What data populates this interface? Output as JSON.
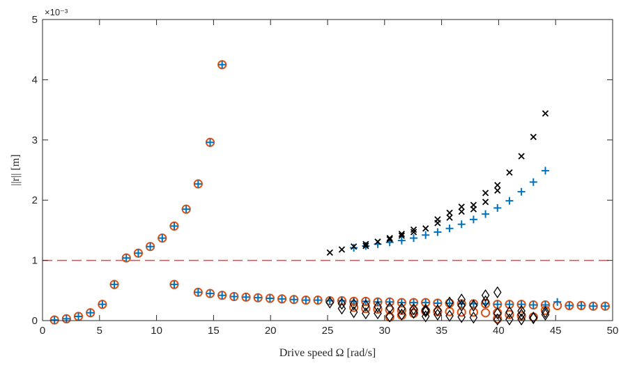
{
  "chart_data": {
    "type": "scatter",
    "xlabel": "Drive speed Ω [rad/s]",
    "ylabel": "||r|| [m]",
    "y_exponent_label": "×10⁻³",
    "xlim": [
      0,
      50
    ],
    "ylim": [
      0,
      5
    ],
    "x_ticks": [
      0,
      5,
      10,
      15,
      20,
      25,
      30,
      35,
      40,
      45,
      50
    ],
    "y_ticks": [
      0,
      1,
      2,
      3,
      4,
      5
    ],
    "grid": false,
    "legend": "none",
    "threshold": {
      "y": 1,
      "style": "dashed",
      "color": "#ff3b3b"
    },
    "series": [
      {
        "marker": "circle",
        "color": "#d95319",
        "points": [
          [
            1.05,
            0.01
          ],
          [
            2.1,
            0.03
          ],
          [
            3.15,
            0.07
          ],
          [
            4.2,
            0.13
          ],
          [
            5.25,
            0.27
          ],
          [
            6.3,
            0.6
          ],
          [
            7.35,
            1.04
          ],
          [
            8.4,
            1.12
          ],
          [
            9.45,
            1.23
          ],
          [
            10.5,
            1.37
          ],
          [
            11.55,
            1.57
          ],
          [
            12.6,
            1.85
          ],
          [
            13.65,
            2.27
          ],
          [
            14.7,
            2.96
          ],
          [
            15.75,
            4.25
          ],
          [
            11.55,
            0.6
          ],
          [
            13.65,
            0.47
          ],
          [
            14.7,
            0.45
          ],
          [
            15.75,
            0.42
          ],
          [
            16.8,
            0.4
          ],
          [
            17.85,
            0.39
          ],
          [
            18.9,
            0.38
          ],
          [
            19.95,
            0.37
          ],
          [
            21,
            0.36
          ],
          [
            22.05,
            0.35
          ],
          [
            23.1,
            0.34
          ],
          [
            24.15,
            0.34
          ],
          [
            25.2,
            0.33
          ],
          [
            26.25,
            0.33
          ],
          [
            27.3,
            0.32
          ],
          [
            28.35,
            0.32
          ],
          [
            29.4,
            0.31
          ],
          [
            30.45,
            0.31
          ],
          [
            31.5,
            0.3
          ],
          [
            32.55,
            0.3
          ],
          [
            33.6,
            0.3
          ],
          [
            34.65,
            0.29
          ],
          [
            35.7,
            0.29
          ],
          [
            36.75,
            0.28
          ],
          [
            37.8,
            0.28
          ],
          [
            38.85,
            0.28
          ],
          [
            39.9,
            0.27
          ],
          [
            40.95,
            0.27
          ],
          [
            42,
            0.27
          ],
          [
            43.05,
            0.26
          ],
          [
            44.1,
            0.26
          ],
          [
            45.15,
            0.25
          ],
          [
            46.2,
            0.25
          ],
          [
            47.25,
            0.25
          ],
          [
            48.3,
            0.24
          ],
          [
            49.35,
            0.24
          ],
          [
            27.3,
            0.22
          ],
          [
            28.35,
            0.2
          ],
          [
            29.4,
            0.19
          ],
          [
            30.45,
            0.18
          ],
          [
            31.5,
            0.17
          ],
          [
            32.55,
            0.17
          ],
          [
            33.6,
            0.16
          ],
          [
            34.65,
            0.15
          ],
          [
            35.7,
            0.15
          ],
          [
            36.75,
            0.14
          ],
          [
            37.8,
            0.14
          ],
          [
            38.85,
            0.13
          ],
          [
            39.9,
            0.13
          ],
          [
            40.95,
            0.1
          ],
          [
            42,
            0.08
          ],
          [
            43.05,
            0.06
          ],
          [
            44.1,
            0.17
          ],
          [
            30.45,
            0.06
          ],
          [
            31.5,
            0.09
          ],
          [
            32.55,
            0.12
          ],
          [
            39.9,
            0.03
          ]
        ]
      },
      {
        "marker": "plus",
        "color": "#0072bd",
        "points": [
          [
            1.05,
            0.01
          ],
          [
            2.1,
            0.03
          ],
          [
            3.15,
            0.07
          ],
          [
            4.2,
            0.13
          ],
          [
            5.25,
            0.27
          ],
          [
            6.3,
            0.6
          ],
          [
            7.35,
            1.04
          ],
          [
            8.4,
            1.12
          ],
          [
            9.45,
            1.23
          ],
          [
            10.5,
            1.37
          ],
          [
            11.55,
            1.57
          ],
          [
            12.6,
            1.85
          ],
          [
            13.65,
            2.27
          ],
          [
            14.7,
            2.96
          ],
          [
            15.75,
            4.25
          ],
          [
            11.55,
            0.6
          ],
          [
            13.65,
            0.47
          ],
          [
            14.7,
            0.45
          ],
          [
            15.75,
            0.42
          ],
          [
            16.8,
            0.4
          ],
          [
            17.85,
            0.39
          ],
          [
            18.9,
            0.38
          ],
          [
            19.95,
            0.37
          ],
          [
            21,
            0.36
          ],
          [
            22.05,
            0.35
          ],
          [
            23.1,
            0.34
          ],
          [
            24.15,
            0.34
          ],
          [
            25.2,
            0.33
          ],
          [
            26.25,
            0.33
          ],
          [
            27.3,
            0.32
          ],
          [
            28.35,
            0.32
          ],
          [
            29.4,
            0.31
          ],
          [
            30.45,
            0.31
          ],
          [
            31.5,
            0.3
          ],
          [
            32.55,
            0.3
          ],
          [
            33.6,
            0.3
          ],
          [
            34.65,
            0.29
          ],
          [
            35.7,
            0.29
          ],
          [
            36.75,
            0.28
          ],
          [
            37.8,
            0.28
          ],
          [
            38.85,
            0.28
          ],
          [
            39.9,
            0.27
          ],
          [
            40.95,
            0.27
          ],
          [
            42,
            0.27
          ],
          [
            43.05,
            0.26
          ],
          [
            44.1,
            0.26
          ],
          [
            45.15,
            0.31
          ],
          [
            46.2,
            0.25
          ],
          [
            47.25,
            0.25
          ],
          [
            48.3,
            0.24
          ],
          [
            49.35,
            0.24
          ],
          [
            27.3,
            1.21
          ],
          [
            28.35,
            1.24
          ],
          [
            29.4,
            1.27
          ],
          [
            30.45,
            1.3
          ],
          [
            31.5,
            1.33
          ],
          [
            32.55,
            1.37
          ],
          [
            33.6,
            1.42
          ],
          [
            34.65,
            1.47
          ],
          [
            35.7,
            1.53
          ],
          [
            36.75,
            1.6
          ],
          [
            37.8,
            1.68
          ],
          [
            38.85,
            1.77
          ],
          [
            39.9,
            1.87
          ],
          [
            40.95,
            1.99
          ],
          [
            42,
            2.14
          ],
          [
            43.05,
            2.3
          ],
          [
            44.1,
            2.49
          ]
        ]
      },
      {
        "marker": "cross",
        "color": "#000000",
        "points": [
          [
            25.2,
            1.13
          ],
          [
            26.25,
            1.18
          ],
          [
            27.3,
            1.23
          ],
          [
            28.35,
            1.27
          ],
          [
            29.4,
            1.31
          ],
          [
            30.45,
            1.37
          ],
          [
            31.5,
            1.44
          ],
          [
            32.55,
            1.51
          ],
          [
            33.6,
            1.53
          ],
          [
            34.65,
            1.68
          ],
          [
            35.7,
            1.79
          ],
          [
            36.75,
            1.89
          ],
          [
            37.8,
            1.92
          ],
          [
            38.85,
            2.12
          ],
          [
            39.9,
            2.25
          ],
          [
            40.95,
            2.46
          ],
          [
            42,
            2.73
          ],
          [
            43.05,
            3.05
          ],
          [
            44.1,
            3.44
          ],
          [
            28.35,
            1.24
          ],
          [
            30.45,
            1.35
          ],
          [
            31.5,
            1.41
          ],
          [
            32.55,
            1.47
          ],
          [
            34.65,
            1.62
          ],
          [
            35.7,
            1.71
          ],
          [
            36.75,
            1.81
          ],
          [
            37.8,
            1.85
          ],
          [
            38.85,
            1.97
          ],
          [
            39.9,
            2.16
          ]
        ]
      },
      {
        "marker": "diamond",
        "color": "#000000",
        "points": [
          [
            25.2,
            0.3
          ],
          [
            26.25,
            0.28
          ],
          [
            27.3,
            0.27
          ],
          [
            28.35,
            0.25
          ],
          [
            29.4,
            0.23
          ],
          [
            30.45,
            0.21
          ],
          [
            31.5,
            0.2
          ],
          [
            32.55,
            0.19
          ],
          [
            33.6,
            0.18
          ],
          [
            34.65,
            0.17
          ],
          [
            35.7,
            0.3
          ],
          [
            36.75,
            0.35
          ],
          [
            37.8,
            0.25
          ],
          [
            38.85,
            0.42
          ],
          [
            39.9,
            0.47
          ],
          [
            40.95,
            0.14
          ],
          [
            42,
            0.16
          ],
          [
            43.05,
            0.05
          ],
          [
            44.1,
            0.14
          ],
          [
            27.3,
            0.14
          ],
          [
            28.35,
            0.12
          ],
          [
            29.4,
            0.12
          ],
          [
            30.45,
            0.07
          ],
          [
            31.5,
            0.1
          ],
          [
            32.55,
            0.13
          ],
          [
            33.6,
            0.15
          ],
          [
            34.65,
            0.1
          ],
          [
            35.7,
            0.08
          ],
          [
            36.75,
            0.06
          ],
          [
            37.8,
            0.05
          ],
          [
            38.85,
            0.32
          ],
          [
            39.9,
            0.02
          ],
          [
            40.95,
            0.02
          ],
          [
            42,
            0.02
          ],
          [
            43.05,
            0.04
          ],
          [
            44.1,
            0.1
          ],
          [
            26.25,
            0.2
          ],
          [
            33.6,
            0.07
          ],
          [
            36.75,
            0.25
          ],
          [
            39.9,
            0.12
          ],
          [
            42,
            0.1
          ]
        ]
      }
    ]
  }
}
